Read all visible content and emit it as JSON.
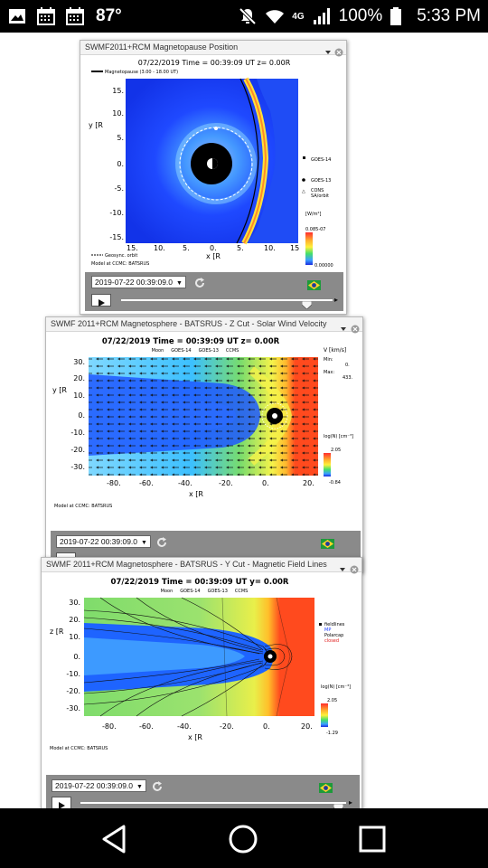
{
  "status_bar": {
    "temperature": "87°",
    "network": "4G",
    "battery": "100%",
    "time": "5:33 PM"
  },
  "widgets": [
    {
      "title": "SWMF2011+RCM Magnetopause Position",
      "plot": {
        "header": "07/22/2019 Time = 00:39:09 UT z= 0.00R",
        "legend_top": "Magnetopause (3.00 - 18.00 UT)",
        "y_label": "y [R",
        "x_label": "x [R",
        "y_ticks": [
          "15.",
          "10.",
          "5.",
          "0.",
          "-5.",
          "-10.",
          "-15."
        ],
        "x_ticks": [
          "15.",
          "10.",
          "5.",
          "0.",
          "5.",
          "10.",
          "15"
        ],
        "legend_right": [
          "GOES-14",
          "GOES-13",
          "CONS",
          "SA/orbit"
        ],
        "colorbar_top": "0.085-07",
        "colorbar_bottom": "0.00000",
        "legend_bottom": "Geosync. orbit",
        "credit": "Model at CCMC: BATSRUS",
        "colorbar_unit": "[W/m²]"
      },
      "date_value": "2019-07-22 00:39:09.0",
      "slider_value": 0.88
    },
    {
      "title": "SWMF 2011+RCM Magnetosphere - BATSRUS - Z Cut - Solar Wind Velocity",
      "plot": {
        "header": "07/22/2019 Time = 00:39:09 UT z= 0.00R",
        "legend_top": [
          "Moon",
          "GOES-14",
          "GOES-13",
          "CCMS"
        ],
        "y_label": "y [R",
        "x_label": "x [R",
        "y_ticks": [
          "30.",
          "20.",
          "10.",
          "0.",
          "-10.",
          "-20.",
          "-30."
        ],
        "x_ticks": [
          "-80.",
          "-60.",
          "-40.",
          "-20.",
          "0.",
          "20."
        ],
        "vector_label": "V [km/s]",
        "vector_min_label": "Min:",
        "vector_min": "0.",
        "vector_max_label": "Max:",
        "vector_max": "433.",
        "colorbar_label": "log(N) [cm⁻³]",
        "colorbar_top": "2.05",
        "colorbar_bottom": "-0.84",
        "credit": "Model at CCMC: BATSRUS"
      },
      "date_value": "2019-07-22 00:39:09.0",
      "slider_value": 0.91
    },
    {
      "title": "SWMF 2011+RCM Magnetosphere - BATSRUS - Y Cut - Magnetic Field Lines",
      "plot": {
        "header": "07/22/2019 Time = 00:39:09 UT y= 0.00R",
        "legend_top": [
          "Moon",
          "GOES-14",
          "GOES-13",
          "CCMS"
        ],
        "y_label": "z [R",
        "x_label": "x [R",
        "y_ticks": [
          "30.",
          "20.",
          "10.",
          "0.",
          "-10.",
          "-20.",
          "-30."
        ],
        "x_ticks": [
          "-80.",
          "-60.",
          "-40.",
          "-20.",
          "0.",
          "20."
        ],
        "legend_right": [
          "fieldlines",
          "MP",
          "Polarcap",
          "closed"
        ],
        "colorbar_label": "log(N) [cm⁻³]",
        "colorbar_top": "2.05",
        "colorbar_bottom": "-1.29",
        "credit": "Model at CCMC: BATSRUS"
      },
      "date_value": "2019-07-22 00:39:09.0",
      "slider_value": 0.97
    }
  ],
  "colors": {
    "magnetosheath_blue": "#1f49ff",
    "solar_wind_red": "#ff4a1e",
    "tail_blue": "#1e64ff",
    "field_green": "#77d36a",
    "panel_gray": "#8a8a8a"
  }
}
